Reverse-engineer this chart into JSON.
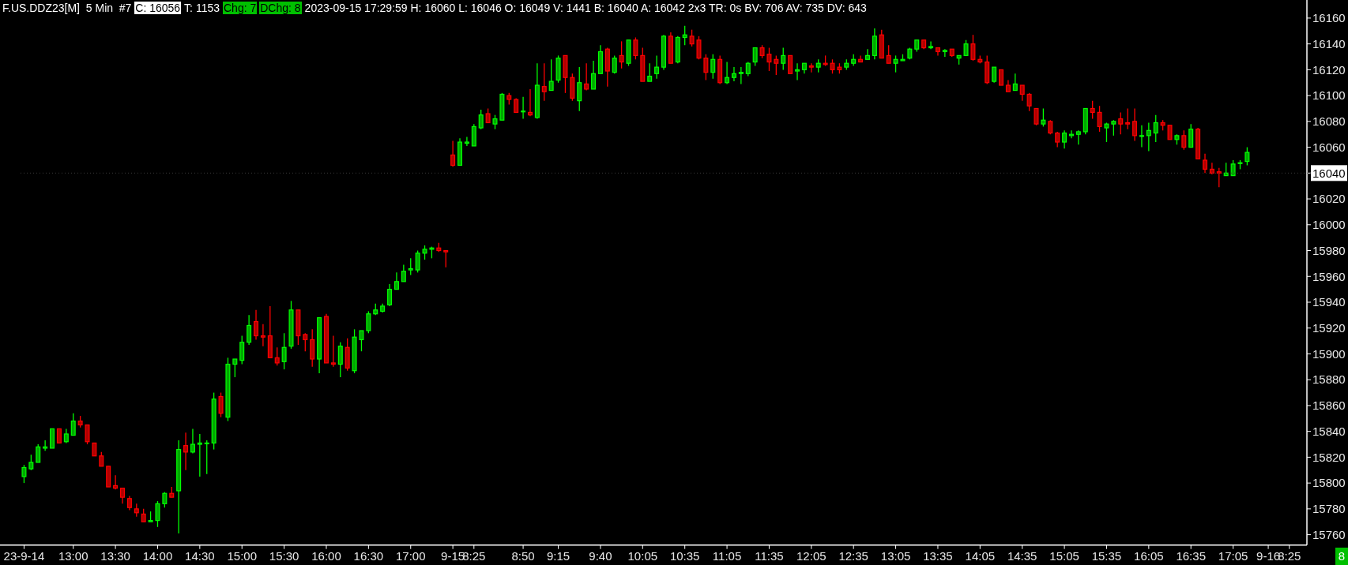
{
  "chart_data": {
    "type": "candlestick",
    "title": "F.US.DDZ23[M]  5 Min  #7",
    "annotations": [
      "C: 16056",
      "T: 1153",
      "Chg: 7",
      "DChg: 8",
      "2023-09-15 17:29:59 H: 16060 L: 16046 O: 16049 V: 1441 B: 16040 A: 16042 2x3 TR: 0s BV: 706 AV: 735 DV: 643",
      "8"
    ],
    "categories": [
      "23-9-14",
      null,
      null,
      null,
      null,
      null,
      null,
      "13:00",
      null,
      null,
      null,
      null,
      null,
      "13:30",
      null,
      null,
      null,
      null,
      null,
      "14:00",
      null,
      null,
      null,
      null,
      null,
      "14:30",
      null,
      null,
      null,
      null,
      null,
      "15:00",
      null,
      null,
      null,
      null,
      null,
      "15:30",
      null,
      null,
      null,
      null,
      null,
      "16:00",
      null,
      null,
      null,
      null,
      null,
      "16:30",
      null,
      null,
      null,
      null,
      null,
      "17:00",
      null,
      null,
      null,
      null,
      null,
      "9-15",
      null,
      null,
      "8:25",
      null,
      null,
      null,
      null,
      null,
      null,
      "8:50",
      null,
      null,
      null,
      null,
      "9:15",
      null,
      null,
      null,
      null,
      null,
      "9:40",
      null,
      null,
      null,
      null,
      null,
      "10:05",
      null,
      null,
      null,
      null,
      null,
      "10:35",
      null,
      null,
      null,
      null,
      null,
      "11:05",
      null,
      null,
      null,
      null,
      null,
      "11:35",
      null,
      null,
      null,
      null,
      null,
      "12:05",
      null,
      null,
      null,
      null,
      null,
      "12:35",
      null,
      null,
      null,
      null,
      null,
      "13:05",
      null,
      null,
      null,
      null,
      null,
      "13:35",
      null,
      null,
      null,
      null,
      null,
      "14:05",
      null,
      null,
      null,
      null,
      null,
      "14:35",
      null,
      null,
      null,
      null,
      null,
      "15:05",
      null,
      null,
      null,
      null,
      null,
      "15:35",
      null,
      null,
      null,
      null,
      null,
      "16:05",
      null,
      null,
      null,
      null,
      null,
      "16:35",
      null,
      null,
      null,
      null,
      null,
      "17:05",
      null,
      null,
      null,
      null,
      "9-16",
      null,
      null,
      "8:25",
      null,
      null
    ],
    "ohlc": [
      [
        15805,
        15814,
        15800,
        15812
      ],
      [
        15811,
        15822,
        15810,
        15816
      ],
      [
        15816,
        15830,
        15816,
        15828
      ],
      [
        15827,
        15833,
        15825,
        15828
      ],
      [
        15827,
        15842,
        15827,
        15842
      ],
      [
        15842,
        15842,
        15831,
        15831
      ],
      [
        15832,
        15842,
        15831,
        15838
      ],
      [
        15837,
        15854,
        15837,
        15848
      ],
      [
        15848,
        15852,
        15843,
        15845
      ],
      [
        15845,
        15845,
        15830,
        15832
      ],
      [
        15831,
        15831,
        15821,
        15821
      ],
      [
        15821,
        15824,
        15813,
        15813
      ],
      [
        15813,
        15813,
        15797,
        15797
      ],
      [
        15798,
        15806,
        15795,
        15796
      ],
      [
        15796,
        15796,
        15784,
        15789
      ],
      [
        15788,
        15790,
        15779,
        15781
      ],
      [
        15780,
        15784,
        15774,
        15777
      ],
      [
        15776,
        15780,
        15770,
        15770
      ],
      [
        15770,
        15778,
        15770,
        15771
      ],
      [
        15771,
        15786,
        15766,
        15784
      ],
      [
        15784,
        15793,
        15781,
        15792
      ],
      [
        15792,
        15797,
        15789,
        15789
      ],
      [
        15794,
        15833,
        15761,
        15826
      ],
      [
        15829,
        15839,
        15810,
        15824
      ],
      [
        15824,
        15842,
        15823,
        15830
      ],
      [
        15830,
        15838,
        15805,
        15831
      ],
      [
        15831,
        15833,
        15807,
        15831
      ],
      [
        15831,
        15870,
        15826,
        15865
      ],
      [
        15867,
        15870,
        15851,
        15854
      ],
      [
        15851,
        15897,
        15848,
        15892
      ],
      [
        15892,
        15896,
        15882,
        15896
      ],
      [
        15895,
        15914,
        15892,
        15909
      ],
      [
        15909,
        15930,
        15907,
        15922
      ],
      [
        15925,
        15934,
        15911,
        15914
      ],
      [
        15914,
        15923,
        15906,
        15913
      ],
      [
        15914,
        15937,
        15897,
        15897
      ],
      [
        15897,
        15905,
        15891,
        15893
      ],
      [
        15894,
        15916,
        15888,
        15905
      ],
      [
        15906,
        15941,
        15904,
        15934
      ],
      [
        15934,
        15934,
        15907,
        15914
      ],
      [
        15915,
        15916,
        15902,
        15911
      ],
      [
        15911,
        15919,
        15890,
        15896
      ],
      [
        15896,
        15928,
        15885,
        15928
      ],
      [
        15929,
        15931,
        15893,
        15893
      ],
      [
        15893,
        15914,
        15890,
        15892
      ],
      [
        15892,
        15909,
        15882,
        15906
      ],
      [
        15905,
        15912,
        15887,
        15889
      ],
      [
        15887,
        15919,
        15885,
        15913
      ],
      [
        15911,
        15918,
        15902,
        15918
      ],
      [
        15918,
        15933,
        15916,
        15931
      ],
      [
        15931,
        15939,
        15930,
        15934
      ],
      [
        15933,
        15939,
        15932,
        15937
      ],
      [
        15938,
        15954,
        15937,
        15950
      ],
      [
        15950,
        15963,
        15950,
        15956
      ],
      [
        15956,
        15969,
        15956,
        15964
      ],
      [
        15965,
        15974,
        15961,
        15966
      ],
      [
        15965,
        15980,
        15963,
        15978
      ],
      [
        15978,
        15984,
        15973,
        15981
      ],
      [
        15981,
        15983,
        15974,
        15982
      ],
      [
        15982,
        15986,
        15979,
        15980
      ],
      [
        15980,
        15980,
        15967,
        15979
      ],
      [
        16054,
        16065,
        16045,
        16046
      ],
      [
        16046,
        16067,
        16046,
        16064
      ],
      [
        16063,
        16068,
        16061,
        16064
      ],
      [
        16061,
        16078,
        16061,
        16076
      ],
      [
        16075,
        16089,
        16074,
        16085
      ],
      [
        16086,
        16090,
        16079,
        16079
      ],
      [
        16078,
        16085,
        16074,
        16082
      ],
      [
        16081,
        16102,
        16081,
        16101
      ],
      [
        16100,
        16102,
        16093,
        16097
      ],
      [
        16097,
        16098,
        16087,
        16087
      ],
      [
        16088,
        16099,
        16082,
        16088
      ],
      [
        16087,
        16105,
        16084,
        16085
      ],
      [
        16083,
        16125,
        16082,
        16108
      ],
      [
        16107,
        16125,
        16096,
        16103
      ],
      [
        16104,
        16128,
        16104,
        16111
      ],
      [
        16112,
        16131,
        16110,
        16129
      ],
      [
        16131,
        16131,
        16102,
        16114
      ],
      [
        16114,
        16117,
        16096,
        16098
      ],
      [
        16096,
        16122,
        16088,
        16110
      ],
      [
        16109,
        16125,
        16104,
        16105
      ],
      [
        16105,
        16127,
        16105,
        16117
      ],
      [
        16117,
        16139,
        16117,
        16134
      ],
      [
        16136,
        16137,
        16107,
        16119
      ],
      [
        16118,
        16131,
        16117,
        16129
      ],
      [
        16131,
        16142,
        16121,
        16126
      ],
      [
        16125,
        16143,
        16123,
        16143
      ],
      [
        16143,
        16145,
        16128,
        16131
      ],
      [
        16131,
        16137,
        16111,
        16111
      ],
      [
        16111,
        16125,
        16111,
        16115
      ],
      [
        16117,
        16131,
        16113,
        16122
      ],
      [
        16122,
        16147,
        16120,
        16146
      ],
      [
        16146,
        16149,
        16125,
        16125
      ],
      [
        16126,
        16146,
        16125,
        16145
      ],
      [
        16145,
        16154,
        16139,
        16147
      ],
      [
        16146,
        16151,
        16138,
        16140
      ],
      [
        16143,
        16146,
        16128,
        16129
      ],
      [
        16129,
        16132,
        16112,
        16118
      ],
      [
        16118,
        16132,
        16113,
        16128
      ],
      [
        16128,
        16131,
        16109,
        16110
      ],
      [
        16110,
        16126,
        16109,
        16114
      ],
      [
        16114,
        16122,
        16111,
        16117
      ],
      [
        16117,
        16122,
        16109,
        16118
      ],
      [
        16117,
        16126,
        16115,
        16125
      ],
      [
        16126,
        16137,
        16123,
        16137
      ],
      [
        16137,
        16139,
        16129,
        16131
      ],
      [
        16132,
        16137,
        16119,
        16126
      ],
      [
        16128,
        16131,
        16116,
        16125
      ],
      [
        16125,
        16137,
        16120,
        16131
      ],
      [
        16131,
        16131,
        16117,
        16117
      ],
      [
        16119,
        16125,
        16112,
        16120
      ],
      [
        16120,
        16125,
        16117,
        16125
      ],
      [
        16123,
        16125,
        16118,
        16122
      ],
      [
        16122,
        16128,
        16118,
        16125
      ],
      [
        16125,
        16131,
        16123,
        16124
      ],
      [
        16125,
        16128,
        16117,
        16120
      ],
      [
        16122,
        16125,
        16117,
        16120
      ],
      [
        16122,
        16128,
        16120,
        16125
      ],
      [
        16125,
        16132,
        16123,
        16128
      ],
      [
        16128,
        16131,
        16126,
        16126
      ],
      [
        16128,
        16136,
        16128,
        16131
      ],
      [
        16131,
        16152,
        16128,
        16146
      ],
      [
        16147,
        16151,
        16129,
        16129
      ],
      [
        16131,
        16139,
        16125,
        16125
      ],
      [
        16125,
        16131,
        16118,
        16128
      ],
      [
        16127,
        16132,
        16127,
        16128
      ],
      [
        16129,
        16137,
        16128,
        16136
      ],
      [
        16136,
        16143,
        16134,
        16143
      ],
      [
        16143,
        16143,
        16136,
        16137
      ],
      [
        16137,
        16142,
        16136,
        16138
      ],
      [
        16137,
        16137,
        16131,
        16134
      ],
      [
        16134,
        16136,
        16130,
        16135
      ],
      [
        16136,
        16136,
        16130,
        16131
      ],
      [
        16129,
        16131,
        16124,
        16131
      ],
      [
        16131,
        16143,
        16131,
        16140
      ],
      [
        16140,
        16147,
        16127,
        16128
      ],
      [
        16128,
        16131,
        16125,
        16126
      ],
      [
        16126,
        16131,
        16109,
        16110
      ],
      [
        16111,
        16122,
        16110,
        16122
      ],
      [
        16120,
        16120,
        16108,
        16108
      ],
      [
        16108,
        16112,
        16103,
        16103
      ],
      [
        16104,
        16117,
        16104,
        16109
      ],
      [
        16108,
        16108,
        16096,
        16101
      ],
      [
        16101,
        16102,
        16088,
        16092
      ],
      [
        16090,
        16090,
        16077,
        16078
      ],
      [
        16078,
        16090,
        16076,
        16081
      ],
      [
        16080,
        16081,
        16070,
        16071
      ],
      [
        16071,
        16072,
        16060,
        16064
      ],
      [
        16064,
        16073,
        16059,
        16071
      ],
      [
        16069,
        16073,
        16067,
        16070
      ],
      [
        16070,
        16073,
        16062,
        16072
      ],
      [
        16072,
        16090,
        16070,
        16090
      ],
      [
        16090,
        16096,
        16082,
        16087
      ],
      [
        16087,
        16092,
        16072,
        16076
      ],
      [
        16075,
        16079,
        16064,
        16078
      ],
      [
        16078,
        16081,
        16069,
        16080
      ],
      [
        16082,
        16087,
        16070,
        16078
      ],
      [
        16079,
        16090,
        16074,
        16078
      ],
      [
        16080,
        16090,
        16065,
        16069
      ],
      [
        16069,
        16077,
        16060,
        16069
      ],
      [
        16069,
        16079,
        16057,
        16073
      ],
      [
        16071,
        16085,
        16064,
        16079
      ],
      [
        16079,
        16081,
        16073,
        16077
      ],
      [
        16077,
        16077,
        16066,
        16066
      ],
      [
        16066,
        16070,
        16062,
        16069
      ],
      [
        16069,
        16073,
        16058,
        16060
      ],
      [
        16060,
        16078,
        16060,
        16074
      ],
      [
        16074,
        16075,
        16051,
        16051
      ],
      [
        16050,
        16055,
        16040,
        16043
      ],
      [
        16043,
        16048,
        16039,
        16040
      ],
      [
        16041,
        16044,
        16029,
        16040
      ],
      [
        16038,
        16048,
        16038,
        16040
      ],
      [
        16038,
        16050,
        16038,
        16047
      ],
      [
        16048,
        16050,
        16043,
        16048
      ],
      [
        16049,
        16060,
        16046,
        16056
      ],
      null,
      null,
      null,
      null,
      null,
      null,
      null,
      null
    ],
    "ylim": [
      15752,
      16174
    ],
    "yticks": [
      15760,
      15780,
      15800,
      15820,
      15840,
      15860,
      15880,
      15900,
      15920,
      15940,
      15960,
      15980,
      16000,
      16020,
      16040,
      16060,
      16080,
      16100,
      16120,
      16140,
      16160
    ],
    "ref_lines": [
      {
        "axis": "y",
        "value": 16040,
        "label": "16040"
      }
    ]
  }
}
